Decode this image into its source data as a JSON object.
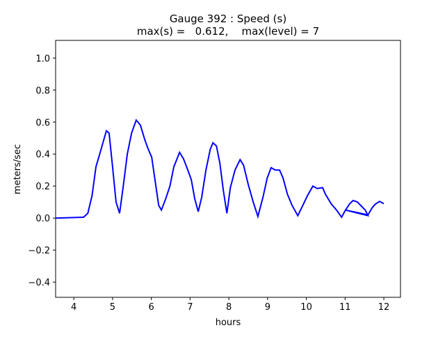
{
  "chart_data": {
    "type": "line",
    "title_line1": "Gauge 392 : Speed (s)",
    "title_line2": "max(s) =   0.612,    max(level) = 7",
    "xlabel": "hours",
    "ylabel": "meters/sec",
    "xlim": [
      3.53,
      12.43
    ],
    "ylim": [
      -0.495,
      1.11
    ],
    "xticks": [
      4,
      5,
      6,
      7,
      8,
      9,
      10,
      11,
      12
    ],
    "yticks": [
      -0.4,
      -0.2,
      0.0,
      0.2,
      0.4,
      0.6,
      0.8,
      1.0
    ],
    "ytick_labels": [
      "−0.4",
      "−0.2",
      "0.0",
      "0.2",
      "0.4",
      "0.6",
      "0.8",
      "1.0"
    ],
    "grid": false,
    "series": [
      {
        "name": "speed",
        "color": "#0000ff",
        "x": [
          3.53,
          4.25,
          4.36,
          4.47,
          4.57,
          4.68,
          4.75,
          4.84,
          4.91,
          5.0,
          5.09,
          5.18,
          5.27,
          5.38,
          5.49,
          5.61,
          5.72,
          5.83,
          5.92,
          6.01,
          6.1,
          6.19,
          6.26,
          6.37,
          6.48,
          6.58,
          6.73,
          6.83,
          6.91,
          7.03,
          7.12,
          7.21,
          7.3,
          7.41,
          7.52,
          7.59,
          7.68,
          7.77,
          7.86,
          7.95,
          8.04,
          8.16,
          8.29,
          8.38,
          8.5,
          8.63,
          8.75,
          8.88,
          8.99,
          9.09,
          9.2,
          9.31,
          9.4,
          9.51,
          9.63,
          9.78,
          9.88,
          10.03,
          10.17,
          10.28,
          10.42,
          10.49,
          10.64,
          10.78,
          10.91,
          11.01,
          11.12,
          11.21,
          11.32,
          11.42,
          11.52,
          11.59,
          11.01,
          11.59,
          11.7,
          11.78,
          11.89,
          12.0
        ],
        "y": [
          0.0,
          0.005,
          0.03,
          0.14,
          0.32,
          0.41,
          0.47,
          0.545,
          0.53,
          0.32,
          0.1,
          0.03,
          0.19,
          0.4,
          0.53,
          0.612,
          0.58,
          0.49,
          0.43,
          0.38,
          0.23,
          0.08,
          0.05,
          0.12,
          0.2,
          0.32,
          0.41,
          0.37,
          0.32,
          0.24,
          0.12,
          0.04,
          0.13,
          0.3,
          0.43,
          0.47,
          0.45,
          0.34,
          0.17,
          0.03,
          0.19,
          0.3,
          0.365,
          0.33,
          0.21,
          0.1,
          0.01,
          0.13,
          0.25,
          0.315,
          0.3,
          0.3,
          0.25,
          0.15,
          0.08,
          0.015,
          0.065,
          0.14,
          0.2,
          0.185,
          0.19,
          0.15,
          0.09,
          0.05,
          0.005,
          0.05,
          0.09,
          0.11,
          0.1,
          0.075,
          0.05,
          0.015,
          0.05,
          0.02,
          0.065,
          0.087,
          0.104,
          0.09
        ]
      }
    ]
  }
}
